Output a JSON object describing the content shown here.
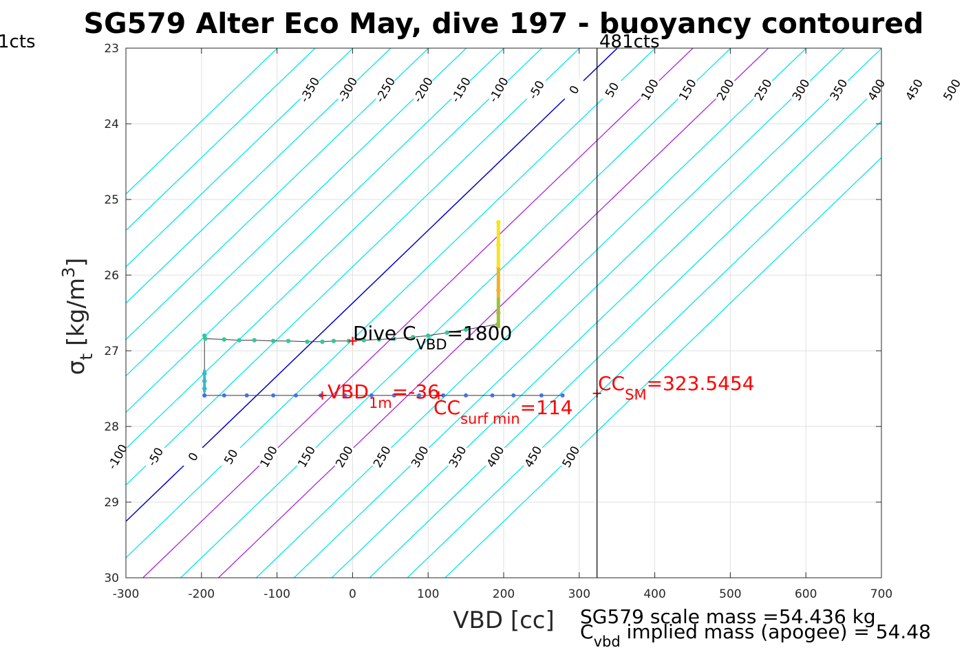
{
  "chart_data": {
    "type": "scatter",
    "title": "SG579 Alter Eco May, dive 197 - buoyancy contoured",
    "xlabel": "VBD [cc]",
    "ylabel": "σ_t [kg/m^3]",
    "xlim": [
      -300,
      700
    ],
    "ylim": [
      23,
      30
    ],
    "y_reversed": true,
    "grid": true,
    "x_ticks": [
      -300,
      -200,
      -100,
      0,
      100,
      200,
      300,
      400,
      500,
      600,
      700
    ],
    "y_ticks": [
      23,
      24,
      25,
      26,
      27,
      28,
      29,
      30
    ],
    "x_tick_labels": [
      "-300",
      "-200",
      "-100",
      "0",
      "100",
      "200",
      "300",
      "400",
      "500",
      "600",
      "700"
    ],
    "y_tick_labels": [
      "23",
      "24",
      "25",
      "26",
      "27",
      "28",
      "29",
      "30"
    ],
    "contours": {
      "levels": [
        -450,
        -400,
        -350,
        -300,
        -250,
        -200,
        -150,
        -100,
        -50,
        0,
        50,
        100,
        150,
        200,
        250,
        300,
        350,
        400,
        450,
        500
      ],
      "zero_color": "#0000cc",
      "highlight_levels": [
        100,
        200
      ],
      "highlight_color": "#aa22dd",
      "other_color": "#00e5ee",
      "top_labels": [
        {
          "level": -350,
          "text": "-350"
        },
        {
          "level": -300,
          "text": "-300"
        },
        {
          "level": -250,
          "text": "-250"
        },
        {
          "level": -200,
          "text": "-200"
        },
        {
          "level": -150,
          "text": "-150"
        },
        {
          "level": -100,
          "text": "-100"
        },
        {
          "level": -50,
          "text": "-50"
        },
        {
          "level": 0,
          "text": "0"
        },
        {
          "level": 50,
          "text": "50"
        },
        {
          "level": 100,
          "text": "100"
        },
        {
          "level": 150,
          "text": "150"
        },
        {
          "level": 200,
          "text": "200"
        },
        {
          "level": 250,
          "text": "250"
        },
        {
          "level": 300,
          "text": "300"
        },
        {
          "level": 350,
          "text": "350"
        },
        {
          "level": 400,
          "text": "400"
        },
        {
          "level": 450,
          "text": "450"
        },
        {
          "level": 500,
          "text": "500"
        }
      ],
      "bottom_labels": [
        {
          "level": -100,
          "text": "-100"
        },
        {
          "level": -50,
          "text": "-50"
        },
        {
          "level": 0,
          "text": "0"
        },
        {
          "level": 50,
          "text": "50"
        },
        {
          "level": 100,
          "text": "100"
        },
        {
          "level": 150,
          "text": "150"
        },
        {
          "level": 200,
          "text": "200"
        },
        {
          "level": 250,
          "text": "250"
        },
        {
          "level": 300,
          "text": "300"
        },
        {
          "level": 350,
          "text": "350"
        },
        {
          "level": 400,
          "text": "400"
        },
        {
          "level": 450,
          "text": "450"
        },
        {
          "level": 500,
          "text": "500"
        }
      ]
    },
    "vertical_line": {
      "x": 323.5454,
      "label": "481cts"
    },
    "left_edge_label": "1cts",
    "dive_trace": [
      [
        193,
        25.3
      ],
      [
        193,
        25.6
      ],
      [
        193,
        25.9
      ],
      [
        193,
        26.2
      ],
      [
        193,
        26.5
      ],
      [
        192,
        26.65
      ],
      [
        150,
        26.72
      ],
      [
        125,
        26.76
      ],
      [
        100,
        26.8
      ],
      [
        80,
        26.82
      ],
      [
        55,
        26.84
      ],
      [
        35,
        26.85
      ],
      [
        15,
        26.86
      ],
      [
        -5,
        26.87
      ],
      [
        -25,
        26.87
      ],
      [
        -40,
        26.88
      ],
      [
        -60,
        26.88
      ],
      [
        -85,
        26.87
      ],
      [
        -105,
        26.87
      ],
      [
        -130,
        26.86
      ],
      [
        -150,
        26.86
      ],
      [
        -170,
        26.85
      ],
      [
        -195,
        26.84
      ],
      [
        -196,
        26.8
      ],
      [
        -196,
        27.3
      ],
      [
        -196,
        27.4
      ],
      [
        -196,
        27.5
      ],
      [
        -196,
        27.59
      ]
    ],
    "climb_trace": [
      [
        -196,
        27.59
      ],
      [
        -170,
        27.59
      ],
      [
        -140,
        27.59
      ],
      [
        -105,
        27.59
      ],
      [
        -75,
        27.59
      ],
      [
        -42,
        27.59
      ],
      [
        -10,
        27.59
      ],
      [
        25,
        27.59
      ],
      [
        55,
        27.59
      ],
      [
        88,
        27.59
      ],
      [
        120,
        27.59
      ],
      [
        150,
        27.59
      ],
      [
        185,
        27.59
      ],
      [
        213,
        27.59
      ],
      [
        250,
        27.59
      ],
      [
        278,
        27.59
      ]
    ],
    "annotations": {
      "dive_c_vbd": {
        "prefix": "Dive C",
        "sub": "VBD",
        "suffix": "=1800"
      },
      "vbd_1m": {
        "prefix": "VBD",
        "sub": "1m",
        "suffix": "=-36"
      },
      "cc_surf_min": {
        "prefix": "CC",
        "sub": "surf min",
        "suffix": "=114"
      },
      "cc_sm": {
        "prefix": "CC",
        "sub": "SM",
        "suffix": "=323.5454"
      },
      "markers": [
        [
          -40,
          27.59
        ],
        [
          114,
          27.59
        ],
        [
          323.5454,
          27.59
        ],
        [
          0,
          26.87
        ]
      ]
    },
    "footer": {
      "scale_mass": "SG579 scale mass =54.436 kg",
      "implied_prefix": "C",
      "implied_sub": "vbd",
      "implied_suffix": " implied mass (apogee) = 54.48"
    },
    "colors": {
      "marker": "#ff0000",
      "trace_line": "#333333",
      "axes": "#262626",
      "grid": "#dfdfdf"
    }
  }
}
